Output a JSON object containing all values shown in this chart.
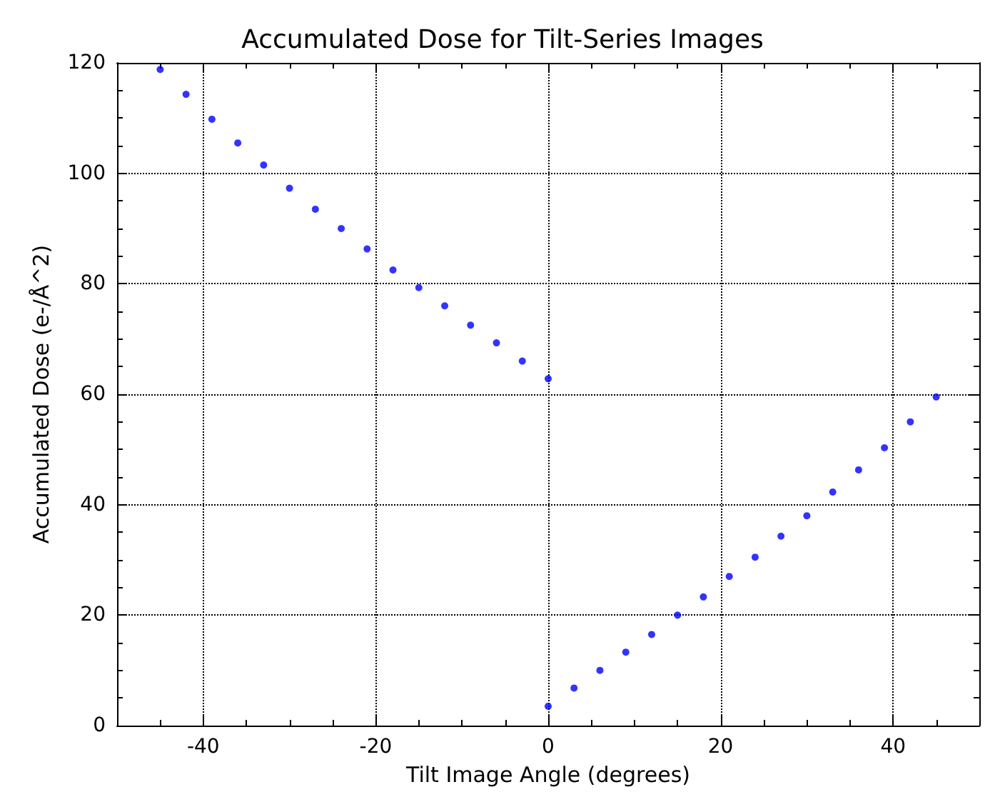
{
  "chart_data": {
    "type": "scatter",
    "title": "Accumulated Dose for Tilt-Series Images",
    "xlabel": "Tilt Image Angle (degrees)",
    "ylabel": "Accumulated Dose (e-/Å^2)",
    "x": [
      -45,
      -42,
      -39,
      -36,
      -33,
      -30,
      -27,
      -24,
      -21,
      -18,
      -15,
      -12,
      -9,
      -6,
      -3,
      0,
      0,
      3,
      6,
      9,
      12,
      15,
      18,
      21,
      24,
      27,
      30,
      33,
      36,
      39,
      42,
      45
    ],
    "series": [
      {
        "color": "#0000ff",
        "values": [
          118.8,
          114.3,
          109.8,
          105.5,
          101.5,
          97.3,
          93.5,
          90,
          86.3,
          82.5,
          79.3,
          76,
          72.5,
          69.3,
          66,
          62.8,
          3.5,
          6.8,
          10,
          13.3,
          16.5,
          20,
          23.3,
          27,
          30.5,
          34.3,
          38,
          42.3,
          46.3,
          50.3,
          55,
          59.5
        ]
      }
    ],
    "xlim": [
      -50,
      50
    ],
    "xticks": [
      -40,
      -20,
      0,
      20,
      40
    ],
    "ylim": [
      0,
      120
    ],
    "yticks": [
      0,
      20,
      40,
      60,
      80,
      100,
      120
    ],
    "grid": true,
    "marker": "circle"
  }
}
